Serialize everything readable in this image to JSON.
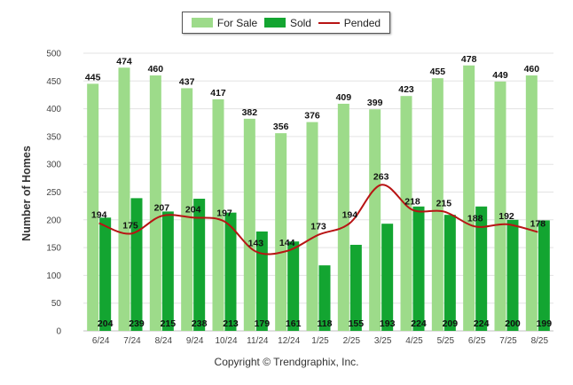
{
  "chart_data": {
    "type": "bar",
    "categories": [
      "6/24",
      "7/24",
      "8/24",
      "9/24",
      "10/24",
      "11/24",
      "12/24",
      "1/25",
      "2/25",
      "3/25",
      "4/25",
      "5/25",
      "6/25",
      "7/25",
      "8/25"
    ],
    "series": [
      {
        "name": "For Sale",
        "type": "bar",
        "color": "#9ddb8a",
        "values": [
          445,
          474,
          460,
          437,
          417,
          382,
          356,
          376,
          409,
          399,
          423,
          455,
          478,
          449,
          460
        ]
      },
      {
        "name": "Sold",
        "type": "bar",
        "color": "#13a531",
        "values": [
          204,
          239,
          215,
          238,
          213,
          179,
          161,
          118,
          155,
          193,
          224,
          209,
          224,
          200,
          199
        ]
      },
      {
        "name": "Pended",
        "type": "line",
        "color": "#b81414",
        "values": [
          194,
          175,
          207,
          204,
          197,
          143,
          144,
          173,
          194,
          263,
          218,
          215,
          188,
          192,
          178
        ]
      }
    ],
    "ylabel": "Number of Homes",
    "ylim": [
      0,
      500
    ],
    "yticks": [
      0,
      50,
      100,
      150,
      200,
      250,
      300,
      350,
      400,
      450,
      500
    ],
    "grid": true,
    "legend_position": "top-center"
  },
  "footer": {
    "copyright": "Copyright © Trendgraphix, Inc."
  }
}
